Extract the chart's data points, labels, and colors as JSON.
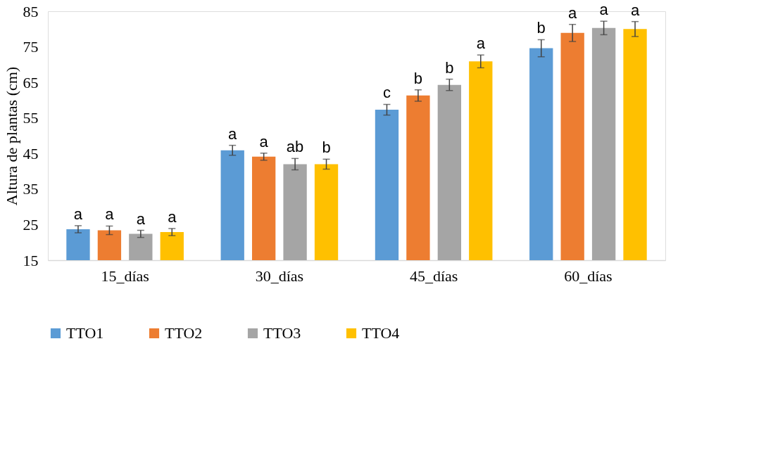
{
  "chart_data": {
    "type": "bar",
    "ylabel": "Altura de plantas (cm)",
    "categories": [
      "15_días",
      "30_días",
      "45_días",
      "60_días"
    ],
    "series": [
      {
        "name": "TTO1",
        "color": "#5b9bd5",
        "values": [
          23.7,
          45.9,
          57.3,
          74.6
        ],
        "errors": [
          1.0,
          1.4,
          1.5,
          2.4
        ],
        "value_labels": [
          "a",
          "a",
          "c",
          "b"
        ]
      },
      {
        "name": "TTO2",
        "color": "#ed7d31",
        "values": [
          23.4,
          44.1,
          61.3,
          78.9
        ],
        "errors": [
          1.2,
          1.0,
          1.6,
          2.4
        ],
        "value_labels": [
          "a",
          "a",
          "b",
          "a"
        ]
      },
      {
        "name": "TTO3",
        "color": "#a5a5a5",
        "values": [
          22.4,
          42.0,
          64.3,
          80.3
        ],
        "errors": [
          1.0,
          1.6,
          1.6,
          1.9
        ],
        "value_labels": [
          "a",
          "ab",
          "b",
          "a"
        ]
      },
      {
        "name": "TTO4",
        "color": "#ffc000",
        "values": [
          22.9,
          42.0,
          70.9,
          80.0
        ],
        "errors": [
          1.0,
          1.4,
          1.8,
          2.1
        ],
        "value_labels": [
          "a",
          "b",
          "a",
          "a"
        ]
      }
    ],
    "ylim": [
      15,
      85
    ],
    "yticks": [
      15,
      25,
      35,
      45,
      55,
      65,
      75,
      85
    ],
    "grid": false,
    "legend": "bottom"
  }
}
